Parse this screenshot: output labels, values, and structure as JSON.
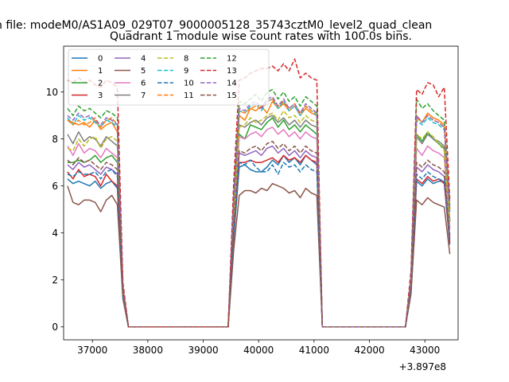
{
  "figure": {
    "suptitle": "n file: modeM0/AS1A09_029T07_9000005128_35743cztM0_level2_quad_clean",
    "title": "Quadrant 1 module wise count rates with 100.0s bins.",
    "offset_label": "+3.897e8"
  },
  "chart_data": {
    "type": "line",
    "title": "Quadrant 1 module wise count rates with 100.0s bins.",
    "xlabel": "",
    "ylabel": "",
    "x_offset": 389700000,
    "xlim": [
      36480,
      43600
    ],
    "ylim": [
      -0.55,
      11.95
    ],
    "xticks": [
      37000,
      38000,
      39000,
      40000,
      41000,
      42000,
      43000
    ],
    "xtick_labels": [
      "37000",
      "38000",
      "39000",
      "40000",
      "41000",
      "42000",
      "43000"
    ],
    "yticks": [
      0,
      2,
      4,
      6,
      8,
      10
    ],
    "ytick_labels": [
      "0",
      "2",
      "4",
      "6",
      "8",
      "10"
    ],
    "grid": false,
    "legend": {
      "placement": "top-left",
      "columns": 4
    },
    "x": [
      36550,
      36650,
      36750,
      36850,
      36950,
      37050,
      37150,
      37250,
      37350,
      37450,
      37550,
      37650,
      37750,
      39450,
      39550,
      39650,
      39750,
      39850,
      39950,
      40050,
      40150,
      40250,
      40350,
      40450,
      40550,
      40650,
      40750,
      40850,
      40950,
      41050,
      41150,
      42650,
      42750,
      42850,
      42950,
      43050,
      43150,
      43250,
      43350,
      43450
    ],
    "series": [
      {
        "name": "0",
        "color": "#1f77b4",
        "dash": "solid",
        "values": [
          6.3,
          6.1,
          6.2,
          6.1,
          6.0,
          6.2,
          5.9,
          6.1,
          6.2,
          5.9,
          1.3,
          0.0,
          0.0,
          0.0,
          3.8,
          6.8,
          6.9,
          6.7,
          6.6,
          6.6,
          6.8,
          7.1,
          6.9,
          7.3,
          7.0,
          7.2,
          6.9,
          7.3,
          7.1,
          6.9,
          0.0,
          0.0,
          1.6,
          6.2,
          6.0,
          6.3,
          6.1,
          6.2,
          6.2,
          3.5
        ]
      },
      {
        "name": "1",
        "color": "#ff7f0e",
        "dash": "solid",
        "values": [
          8.8,
          8.7,
          8.6,
          8.7,
          8.5,
          8.8,
          8.4,
          8.6,
          8.7,
          8.3,
          1.6,
          0.0,
          0.0,
          0.0,
          5.2,
          9.0,
          8.8,
          9.3,
          9.2,
          9.4,
          9.1,
          9.6,
          9.3,
          9.5,
          9.2,
          9.4,
          9.0,
          9.3,
          9.1,
          9.0,
          0.0,
          0.0,
          2.0,
          9.0,
          8.7,
          9.1,
          8.9,
          8.8,
          8.6,
          5.0
        ]
      },
      {
        "name": "2",
        "color": "#2ca02c",
        "dash": "solid",
        "values": [
          7.0,
          7.0,
          7.1,
          7.0,
          7.1,
          7.3,
          7.0,
          7.2,
          7.3,
          7.0,
          1.4,
          0.0,
          0.0,
          0.0,
          4.5,
          8.2,
          8.0,
          8.6,
          8.5,
          8.4,
          8.7,
          8.9,
          8.5,
          8.8,
          8.4,
          8.6,
          8.3,
          8.6,
          8.4,
          8.2,
          0.0,
          0.0,
          1.8,
          8.2,
          7.9,
          8.3,
          8.0,
          7.8,
          7.6,
          4.5
        ]
      },
      {
        "name": "3",
        "color": "#d62728",
        "dash": "solid",
        "values": [
          6.6,
          6.3,
          6.7,
          6.4,
          6.5,
          6.4,
          6.0,
          6.5,
          6.2,
          6.0,
          1.3,
          0.0,
          0.0,
          0.0,
          4.0,
          7.0,
          7.0,
          7.1,
          7.0,
          7.0,
          7.1,
          7.2,
          7.0,
          7.3,
          7.1,
          7.2,
          7.0,
          7.3,
          7.1,
          7.0,
          0.0,
          0.0,
          1.6,
          6.3,
          6.1,
          6.4,
          6.2,
          6.3,
          6.1,
          3.6
        ]
      },
      {
        "name": "4",
        "color": "#9467bd",
        "dash": "solid",
        "values": [
          6.9,
          6.7,
          7.0,
          6.8,
          6.9,
          6.7,
          6.5,
          6.8,
          6.7,
          6.5,
          1.4,
          0.0,
          0.0,
          0.0,
          4.2,
          7.4,
          7.3,
          7.4,
          7.5,
          7.3,
          7.6,
          7.7,
          7.4,
          7.6,
          7.3,
          7.5,
          7.2,
          7.5,
          7.3,
          7.2,
          0.0,
          0.0,
          1.7,
          6.8,
          6.6,
          6.9,
          6.7,
          6.6,
          6.4,
          3.8
        ]
      },
      {
        "name": "5",
        "color": "#8c564b",
        "dash": "solid",
        "values": [
          6.0,
          5.3,
          5.2,
          5.4,
          5.4,
          5.3,
          4.9,
          5.4,
          5.6,
          5.2,
          1.2,
          0.0,
          0.0,
          0.0,
          3.3,
          5.6,
          5.8,
          5.8,
          5.7,
          5.9,
          5.8,
          6.1,
          6.0,
          5.9,
          5.7,
          5.8,
          5.5,
          5.9,
          5.7,
          5.6,
          0.0,
          0.0,
          1.4,
          5.4,
          5.2,
          5.5,
          5.3,
          5.2,
          5.1,
          3.1
        ]
      },
      {
        "name": "6",
        "color": "#e377c2",
        "dash": "solid",
        "values": [
          7.7,
          7.3,
          7.8,
          7.4,
          7.6,
          7.5,
          7.2,
          7.6,
          7.4,
          7.2,
          1.5,
          0.0,
          0.0,
          0.0,
          4.6,
          8.1,
          8.0,
          8.2,
          8.3,
          8.1,
          8.4,
          8.5,
          8.2,
          8.4,
          8.1,
          8.3,
          8.0,
          8.3,
          8.1,
          8.0,
          0.0,
          0.0,
          1.8,
          7.6,
          7.3,
          7.7,
          7.5,
          7.4,
          7.2,
          4.2
        ]
      },
      {
        "name": "7",
        "color": "#7f7f7f",
        "dash": "solid",
        "values": [
          8.2,
          7.8,
          8.3,
          7.9,
          8.1,
          8.0,
          7.7,
          8.1,
          7.9,
          7.7,
          1.5,
          0.0,
          0.0,
          0.0,
          4.9,
          8.6,
          8.5,
          8.7,
          8.8,
          8.6,
          8.9,
          9.0,
          8.7,
          8.9,
          8.6,
          8.8,
          8.5,
          8.8,
          8.6,
          8.5,
          0.0,
          0.0,
          1.9,
          8.1,
          7.8,
          8.2,
          8.0,
          7.9,
          7.7,
          4.5
        ]
      },
      {
        "name": "8",
        "color": "#bcbd22",
        "dash": "dashed",
        "values": [
          7.6,
          7.5,
          8.0,
          7.7,
          8.0,
          8.1,
          7.6,
          8.0,
          8.1,
          7.9,
          1.5,
          0.0,
          0.0,
          0.0,
          4.8,
          8.5,
          8.6,
          8.9,
          8.7,
          8.8,
          9.0,
          9.1,
          8.8,
          9.2,
          8.9,
          9.0,
          8.7,
          9.0,
          8.8,
          8.7,
          0.0,
          0.0,
          1.9,
          8.2,
          8.0,
          8.3,
          8.1,
          7.8,
          7.5,
          4.3
        ]
      },
      {
        "name": "9",
        "color": "#17becf",
        "dash": "dashed",
        "values": [
          8.9,
          8.6,
          9.0,
          8.8,
          8.9,
          8.7,
          8.5,
          8.8,
          8.7,
          8.5,
          1.6,
          0.0,
          0.0,
          0.0,
          5.3,
          9.2,
          9.1,
          9.4,
          9.5,
          9.2,
          9.6,
          9.7,
          9.3,
          9.6,
          9.2,
          9.4,
          9.0,
          9.4,
          9.2,
          9.0,
          0.0,
          0.0,
          2.0,
          8.8,
          8.6,
          8.9,
          8.7,
          8.6,
          8.4,
          4.9
        ]
      },
      {
        "name": "10",
        "color": "#1f77b4",
        "dash": "dashed",
        "values": [
          6.5,
          6.4,
          6.6,
          6.5,
          6.5,
          6.6,
          6.3,
          6.6,
          6.7,
          6.4,
          1.3,
          0.0,
          0.0,
          0.0,
          4.0,
          7.0,
          6.9,
          7.1,
          6.8,
          6.6,
          6.6,
          6.9,
          6.5,
          7.0,
          6.8,
          6.9,
          6.6,
          6.9,
          6.7,
          6.6,
          0.0,
          0.0,
          1.6,
          6.5,
          6.3,
          6.6,
          6.4,
          6.3,
          6.2,
          3.7
        ]
      },
      {
        "name": "11",
        "color": "#ff7f0e",
        "dash": "dashed",
        "values": [
          8.8,
          8.6,
          8.8,
          8.6,
          8.7,
          8.9,
          8.5,
          8.8,
          8.9,
          8.6,
          1.6,
          0.0,
          0.0,
          0.0,
          5.3,
          9.2,
          9.1,
          9.3,
          9.4,
          9.3,
          9.6,
          9.7,
          9.4,
          9.6,
          9.3,
          9.5,
          9.1,
          9.4,
          9.2,
          9.1,
          0.0,
          0.0,
          2.0,
          8.9,
          8.7,
          9.0,
          8.8,
          8.7,
          8.5,
          5.0
        ]
      },
      {
        "name": "12",
        "color": "#2ca02c",
        "dash": "dashed",
        "values": [
          9.3,
          9.0,
          9.4,
          9.2,
          9.3,
          9.1,
          8.9,
          9.2,
          9.1,
          8.9,
          1.7,
          0.0,
          0.0,
          0.0,
          5.6,
          9.6,
          9.5,
          9.7,
          9.9,
          9.6,
          10.0,
          10.1,
          9.7,
          10.0,
          9.6,
          9.8,
          9.4,
          9.8,
          9.6,
          9.4,
          0.0,
          0.0,
          2.1,
          9.7,
          9.3,
          9.5,
          9.2,
          9.0,
          8.8,
          5.2
        ]
      },
      {
        "name": "13",
        "color": "#d62728",
        "dash": "dashed",
        "values": [
          10.5,
          10.4,
          10.6,
          10.4,
          10.5,
          10.3,
          10.2,
          10.5,
          10.4,
          10.2,
          1.9,
          0.0,
          0.0,
          0.0,
          6.2,
          10.5,
          10.6,
          10.8,
          10.9,
          11.0,
          11.0,
          11.1,
          10.9,
          11.2,
          10.9,
          11.4,
          10.6,
          10.8,
          10.6,
          10.5,
          0.0,
          0.0,
          2.4,
          10.1,
          9.9,
          10.4,
          10.3,
          9.8,
          10.2,
          5.4
        ]
      },
      {
        "name": "14",
        "color": "#9467bd",
        "dash": "dashed",
        "values": [
          9.0,
          8.8,
          9.1,
          8.9,
          9.0,
          8.8,
          8.6,
          8.9,
          8.8,
          8.6,
          1.6,
          0.0,
          0.0,
          0.0,
          5.4,
          9.3,
          9.2,
          9.5,
          9.6,
          9.3,
          9.7,
          9.8,
          9.4,
          9.7,
          9.3,
          9.5,
          9.1,
          9.5,
          9.3,
          9.1,
          0.0,
          0.0,
          2.0,
          9.0,
          8.7,
          9.0,
          8.8,
          8.7,
          8.5,
          5.0
        ]
      },
      {
        "name": "15",
        "color": "#8c564b",
        "dash": "dashed",
        "values": [
          7.1,
          6.9,
          7.2,
          7.0,
          7.1,
          6.9,
          6.7,
          7.0,
          6.9,
          6.7,
          1.4,
          0.0,
          0.0,
          0.0,
          4.3,
          7.5,
          7.4,
          7.6,
          7.7,
          7.5,
          7.8,
          7.9,
          7.6,
          7.8,
          7.5,
          7.7,
          7.4,
          7.7,
          7.5,
          7.4,
          0.0,
          0.0,
          1.7,
          7.0,
          6.8,
          7.1,
          6.9,
          6.8,
          6.6,
          3.9
        ]
      }
    ]
  }
}
